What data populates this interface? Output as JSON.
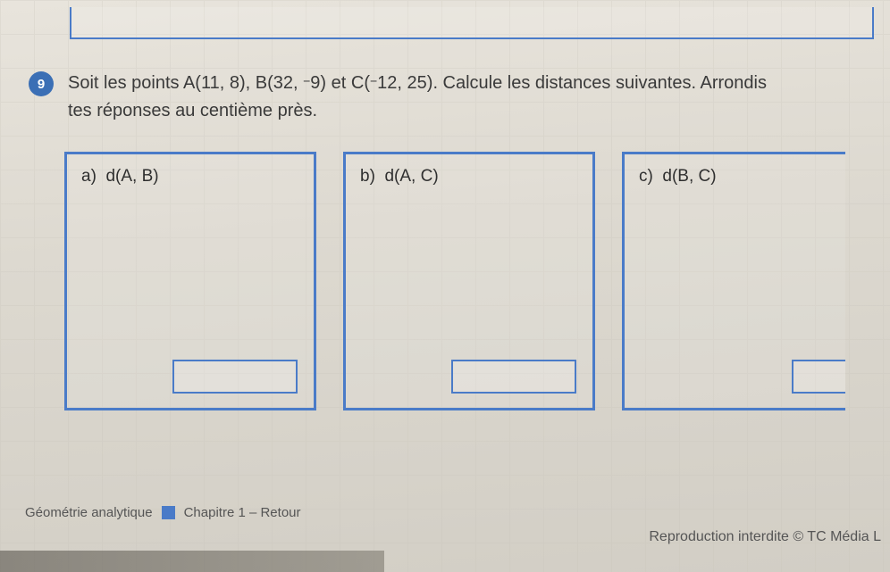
{
  "question": {
    "number": "9",
    "line1_prefix": "Soit les points A(11, 8), B(32, ",
    "neg9": "−",
    "line1_mid": "9) et C(",
    "neg12": "−",
    "line1_suffix": "12, 25). Calcule les distances suivantes. Arrondis",
    "line2": "tes réponses au centième près."
  },
  "parts": {
    "a": {
      "letter": "a)",
      "expr": "d(A, B)"
    },
    "b": {
      "letter": "b)",
      "expr": "d(A, C)"
    },
    "c": {
      "letter": "c)",
      "expr": "d(B, C)"
    }
  },
  "footer": {
    "subject": "Géométrie analytique",
    "chapter": "Chapitre 1 – Retour",
    "reproduction": "Reproduction interdite © TC Média L"
  },
  "colors": {
    "accent": "#4a7bc8",
    "text": "#3a3a3a",
    "page_bg": "#d8d4cc"
  }
}
